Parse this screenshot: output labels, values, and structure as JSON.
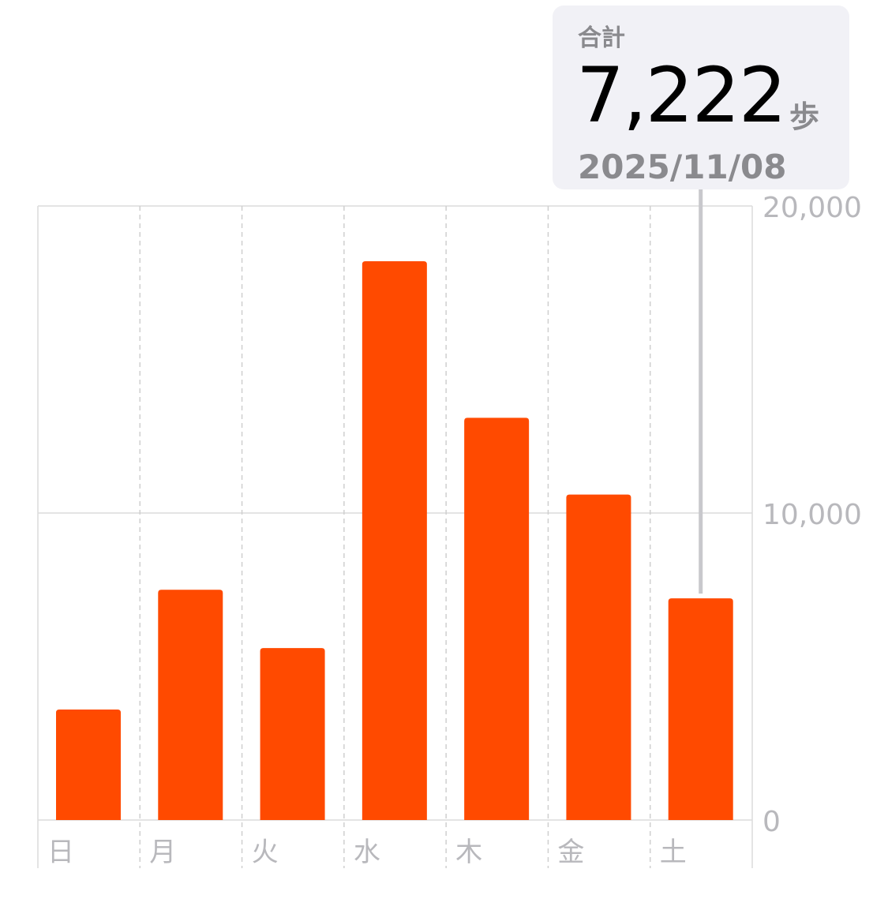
{
  "chart_data": {
    "type": "bar",
    "categories": [
      "日",
      "月",
      "火",
      "水",
      "木",
      "金",
      "土"
    ],
    "values": [
      3600,
      7500,
      5600,
      18200,
      13100,
      10600,
      7222
    ],
    "ylim": [
      0,
      20000
    ],
    "yticks": [
      0,
      10000,
      20000
    ],
    "ytick_labels": [
      "0",
      "10,000",
      "20,000"
    ],
    "grid": true,
    "bar_color": "#ff4a00",
    "selected_index": 6,
    "tooltip": {
      "label": "合計",
      "value": "7,222",
      "unit": "歩",
      "date": "2025/11/08"
    }
  }
}
